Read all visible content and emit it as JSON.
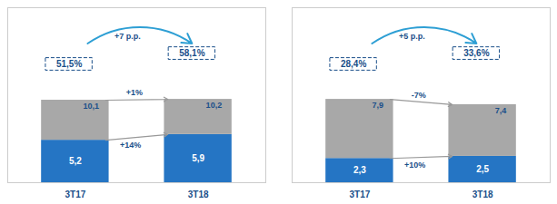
{
  "chart_data": [
    {
      "type": "bar",
      "stacked": true,
      "categories": [
        "3T17",
        "3T18"
      ],
      "series": [
        {
          "color": "#2575c4",
          "values": [
            5.2,
            5.9
          ],
          "value_labels": [
            "5,2",
            "5,9"
          ]
        },
        {
          "color": "#a8a8a8",
          "values": [
            4.9,
            4.3
          ]
        }
      ],
      "totals": [
        10.1,
        10.2
      ],
      "total_labels": [
        "10,1",
        "10,2"
      ],
      "data_labels": true,
      "ylim": [
        0,
        21.42
      ],
      "yticks": [],
      "tick_labels": "x",
      "grid": false,
      "share_labels": [
        "51,5%",
        "58,1%"
      ],
      "share_change_label": "+7 p.p.",
      "total_change_label": "+1%",
      "blue_change_label": "+14%",
      "text_color": "#1a4f8a",
      "arrow_color": "#2e9fd4",
      "change_arrow_color": "#999999"
    },
    {
      "type": "bar",
      "stacked": true,
      "categories": [
        "3T17",
        "3T18"
      ],
      "series": [
        {
          "color": "#2575c4",
          "values": [
            2.3,
            2.5
          ],
          "value_labels": [
            "2,3",
            "2,5"
          ]
        },
        {
          "color": "#a8a8a8",
          "values": [
            5.6,
            4.9
          ]
        }
      ],
      "totals": [
        7.9,
        7.4
      ],
      "total_labels": [
        "7,9",
        "7,4"
      ],
      "data_labels": true,
      "ylim": [
        0,
        16.59
      ],
      "yticks": [],
      "tick_labels": "x",
      "grid": false,
      "share_labels": [
        "28,4%",
        "33,6%"
      ],
      "share_change_label": "+5 p.p.",
      "total_change_label": "-7%",
      "blue_change_label": "+10%",
      "text_color": "#1a4f8a",
      "arrow_color": "#2e9fd4",
      "change_arrow_color": "#999999"
    }
  ]
}
